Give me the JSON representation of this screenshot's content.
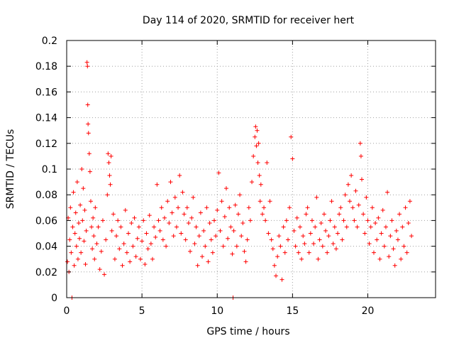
{
  "chart_data": {
    "type": "scatter",
    "title": "Day 114 of 2020, SRMTID for receiver hert",
    "xlabel": "GPS time / hours",
    "ylabel": "SRMTID / TECUs",
    "xlim": [
      0,
      24.5
    ],
    "ylim": [
      0,
      0.2
    ],
    "xticks": [
      0,
      5,
      10,
      15,
      20
    ],
    "xtick_labels": [
      "0",
      "5",
      "10",
      "15",
      "20"
    ],
    "yticks": [
      0,
      0.02,
      0.04,
      0.06,
      0.08,
      0.1,
      0.12,
      0.14,
      0.16,
      0.18,
      0.2
    ],
    "ytick_labels": [
      "0",
      "0.02",
      "0.04",
      "0.06",
      "0.08",
      "0.1",
      "0.12",
      "0.14",
      "0.16",
      "0.18",
      "0.2"
    ],
    "grid": true,
    "marker": "+",
    "color": "#ff0000",
    "series": [
      {
        "name": "SRMTID",
        "points": [
          [
            0.05,
            0.028
          ],
          [
            0.1,
            0.062
          ],
          [
            0.15,
            0.02
          ],
          [
            0.2,
            0.045
          ],
          [
            0.25,
            0.07
          ],
          [
            0.3,
            0.035
          ],
          [
            0.35,
            0.0
          ],
          [
            0.4,
            0.055
          ],
          [
            0.45,
            0.082
          ],
          [
            0.5,
            0.025
          ],
          [
            0.55,
            0.05
          ],
          [
            0.6,
            0.066
          ],
          [
            0.65,
            0.04
          ],
          [
            0.7,
            0.09
          ],
          [
            0.75,
            0.03
          ],
          [
            0.8,
            0.058
          ],
          [
            0.85,
            0.046
          ],
          [
            0.9,
            0.072
          ],
          [
            0.95,
            0.035
          ],
          [
            1.0,
            0.1
          ],
          [
            1.05,
            0.06
          ],
          [
            1.1,
            0.085
          ],
          [
            1.15,
            0.044
          ],
          [
            1.2,
            0.068
          ],
          [
            1.25,
            0.026
          ],
          [
            1.3,
            0.052
          ],
          [
            1.35,
            0.183
          ],
          [
            1.38,
            0.18
          ],
          [
            1.4,
            0.15
          ],
          [
            1.42,
            0.135
          ],
          [
            1.45,
            0.128
          ],
          [
            1.5,
            0.112
          ],
          [
            1.55,
            0.098
          ],
          [
            1.6,
            0.075
          ],
          [
            1.65,
            0.055
          ],
          [
            1.7,
            0.038
          ],
          [
            1.75,
            0.062
          ],
          [
            1.8,
            0.048
          ],
          [
            1.85,
            0.03
          ],
          [
            1.9,
            0.07
          ],
          [
            2.0,
            0.042
          ],
          [
            2.1,
            0.055
          ],
          [
            2.2,
            0.022
          ],
          [
            2.3,
            0.036
          ],
          [
            2.4,
            0.06
          ],
          [
            2.5,
            0.018
          ],
          [
            2.6,
            0.045
          ],
          [
            2.7,
            0.08
          ],
          [
            2.75,
            0.112
          ],
          [
            2.8,
            0.105
          ],
          [
            2.85,
            0.095
          ],
          [
            2.9,
            0.088
          ],
          [
            2.95,
            0.11
          ],
          [
            3.0,
            0.052
          ],
          [
            3.1,
            0.065
          ],
          [
            3.2,
            0.03
          ],
          [
            3.3,
            0.048
          ],
          [
            3.4,
            0.06
          ],
          [
            3.5,
            0.038
          ],
          [
            3.6,
            0.055
          ],
          [
            3.7,
            0.025
          ],
          [
            3.8,
            0.042
          ],
          [
            3.9,
            0.068
          ],
          [
            4.0,
            0.035
          ],
          [
            4.1,
            0.05
          ],
          [
            4.2,
            0.028
          ],
          [
            4.3,
            0.058
          ],
          [
            4.4,
            0.04
          ],
          [
            4.5,
            0.062
          ],
          [
            4.6,
            0.032
          ],
          [
            4.7,
            0.046
          ],
          [
            4.8,
            0.055
          ],
          [
            4.9,
            0.03
          ],
          [
            5.0,
            0.044
          ],
          [
            5.1,
            0.06
          ],
          [
            5.2,
            0.026
          ],
          [
            5.3,
            0.05
          ],
          [
            5.4,
            0.038
          ],
          [
            5.5,
            0.064
          ],
          [
            5.6,
            0.042
          ],
          [
            5.7,
            0.03
          ],
          [
            5.8,
            0.055
          ],
          [
            5.9,
            0.047
          ],
          [
            6.0,
            0.088
          ],
          [
            6.1,
            0.06
          ],
          [
            6.2,
            0.052
          ],
          [
            6.3,
            0.07
          ],
          [
            6.4,
            0.045
          ],
          [
            6.5,
            0.062
          ],
          [
            6.6,
            0.04
          ],
          [
            6.7,
            0.075
          ],
          [
            6.8,
            0.058
          ],
          [
            6.9,
            0.09
          ],
          [
            7.0,
            0.066
          ],
          [
            7.1,
            0.048
          ],
          [
            7.2,
            0.078
          ],
          [
            7.3,
            0.055
          ],
          [
            7.4,
            0.07
          ],
          [
            7.5,
            0.095
          ],
          [
            7.6,
            0.05
          ],
          [
            7.7,
            0.082
          ],
          [
            7.8,
            0.065
          ],
          [
            7.9,
            0.045
          ],
          [
            8.0,
            0.07
          ],
          [
            8.1,
            0.058
          ],
          [
            8.2,
            0.036
          ],
          [
            8.3,
            0.062
          ],
          [
            8.4,
            0.078
          ],
          [
            8.5,
            0.042
          ],
          [
            8.6,
            0.055
          ],
          [
            8.7,
            0.025
          ],
          [
            8.8,
            0.048
          ],
          [
            8.9,
            0.066
          ],
          [
            9.0,
            0.032
          ],
          [
            9.1,
            0.052
          ],
          [
            9.2,
            0.04
          ],
          [
            9.3,
            0.07
          ],
          [
            9.4,
            0.028
          ],
          [
            9.5,
            0.058
          ],
          [
            9.6,
            0.045
          ],
          [
            9.7,
            0.035
          ],
          [
            9.8,
            0.06
          ],
          [
            9.9,
            0.048
          ],
          [
            10.0,
            0.068
          ],
          [
            10.1,
            0.097
          ],
          [
            10.2,
            0.052
          ],
          [
            10.3,
            0.075
          ],
          [
            10.4,
            0.04
          ],
          [
            10.5,
            0.063
          ],
          [
            10.6,
            0.085
          ],
          [
            10.7,
            0.046
          ],
          [
            10.8,
            0.07
          ],
          [
            10.9,
            0.055
          ],
          [
            11.0,
            0.034
          ],
          [
            11.05,
            0.0
          ],
          [
            11.1,
            0.052
          ],
          [
            11.2,
            0.072
          ],
          [
            11.3,
            0.04
          ],
          [
            11.4,
            0.065
          ],
          [
            11.5,
            0.08
          ],
          [
            11.6,
            0.048
          ],
          [
            11.7,
            0.058
          ],
          [
            11.8,
            0.036
          ],
          [
            11.9,
            0.028
          ],
          [
            12.0,
            0.045
          ],
          [
            12.1,
            0.07
          ],
          [
            12.2,
            0.06
          ],
          [
            12.3,
            0.09
          ],
          [
            12.4,
            0.11
          ],
          [
            12.5,
            0.125
          ],
          [
            12.55,
            0.133
          ],
          [
            12.6,
            0.118
          ],
          [
            12.65,
            0.13
          ],
          [
            12.7,
            0.105
          ],
          [
            12.75,
            0.12
          ],
          [
            12.8,
            0.095
          ],
          [
            12.85,
            0.075
          ],
          [
            12.9,
            0.088
          ],
          [
            13.0,
            0.065
          ],
          [
            13.1,
            0.07
          ],
          [
            13.2,
            0.06
          ],
          [
            13.3,
            0.105
          ],
          [
            13.4,
            0.05
          ],
          [
            13.5,
            0.075
          ],
          [
            13.6,
            0.045
          ],
          [
            13.7,
            0.038
          ],
          [
            13.8,
            0.025
          ],
          [
            13.9,
            0.017
          ],
          [
            14.0,
            0.032
          ],
          [
            14.1,
            0.048
          ],
          [
            14.2,
            0.04
          ],
          [
            14.3,
            0.014
          ],
          [
            14.4,
            0.055
          ],
          [
            14.5,
            0.035
          ],
          [
            14.6,
            0.06
          ],
          [
            14.7,
            0.045
          ],
          [
            14.8,
            0.07
          ],
          [
            14.9,
            0.125
          ],
          [
            15.0,
            0.108
          ],
          [
            15.1,
            0.052
          ],
          [
            15.2,
            0.04
          ],
          [
            15.3,
            0.062
          ],
          [
            15.4,
            0.035
          ],
          [
            15.5,
            0.055
          ],
          [
            15.6,
            0.03
          ],
          [
            15.7,
            0.048
          ],
          [
            15.8,
            0.042
          ],
          [
            15.9,
            0.065
          ],
          [
            16.0,
            0.07
          ],
          [
            16.1,
            0.035
          ],
          [
            16.2,
            0.05
          ],
          [
            16.3,
            0.06
          ],
          [
            16.4,
            0.042
          ],
          [
            16.5,
            0.055
          ],
          [
            16.6,
            0.078
          ],
          [
            16.7,
            0.03
          ],
          [
            16.8,
            0.045
          ],
          [
            16.9,
            0.058
          ],
          [
            17.0,
            0.04
          ],
          [
            17.1,
            0.065
          ],
          [
            17.2,
            0.052
          ],
          [
            17.3,
            0.035
          ],
          [
            17.4,
            0.048
          ],
          [
            17.5,
            0.06
          ],
          [
            17.6,
            0.075
          ],
          [
            17.7,
            0.042
          ],
          [
            17.8,
            0.055
          ],
          [
            17.9,
            0.038
          ],
          [
            18.0,
            0.05
          ],
          [
            18.1,
            0.065
          ],
          [
            18.2,
            0.07
          ],
          [
            18.3,
            0.045
          ],
          [
            18.4,
            0.06
          ],
          [
            18.5,
            0.08
          ],
          [
            18.6,
            0.055
          ],
          [
            18.7,
            0.088
          ],
          [
            18.8,
            0.075
          ],
          [
            18.9,
            0.095
          ],
          [
            19.0,
            0.07
          ],
          [
            19.1,
            0.06
          ],
          [
            19.2,
            0.083
          ],
          [
            19.3,
            0.055
          ],
          [
            19.4,
            0.072
          ],
          [
            19.5,
            0.12
          ],
          [
            19.55,
            0.11
          ],
          [
            19.6,
            0.092
          ],
          [
            19.7,
            0.065
          ],
          [
            19.8,
            0.05
          ],
          [
            19.9,
            0.078
          ],
          [
            20.0,
            0.06
          ],
          [
            20.1,
            0.042
          ],
          [
            20.2,
            0.055
          ],
          [
            20.3,
            0.07
          ],
          [
            20.4,
            0.035
          ],
          [
            20.5,
            0.058
          ],
          [
            20.6,
            0.045
          ],
          [
            20.7,
            0.062
          ],
          [
            20.8,
            0.03
          ],
          [
            20.9,
            0.05
          ],
          [
            21.0,
            0.068
          ],
          [
            21.1,
            0.04
          ],
          [
            21.2,
            0.055
          ],
          [
            21.3,
            0.082
          ],
          [
            21.4,
            0.032
          ],
          [
            21.5,
            0.048
          ],
          [
            21.6,
            0.06
          ],
          [
            21.7,
            0.038
          ],
          [
            21.8,
            0.025
          ],
          [
            21.9,
            0.052
          ],
          [
            22.0,
            0.045
          ],
          [
            22.1,
            0.065
          ],
          [
            22.2,
            0.03
          ],
          [
            22.3,
            0.055
          ],
          [
            22.4,
            0.04
          ],
          [
            22.5,
            0.07
          ],
          [
            22.6,
            0.035
          ],
          [
            22.7,
            0.058
          ],
          [
            22.8,
            0.075
          ],
          [
            22.9,
            0.048
          ]
        ]
      }
    ]
  }
}
